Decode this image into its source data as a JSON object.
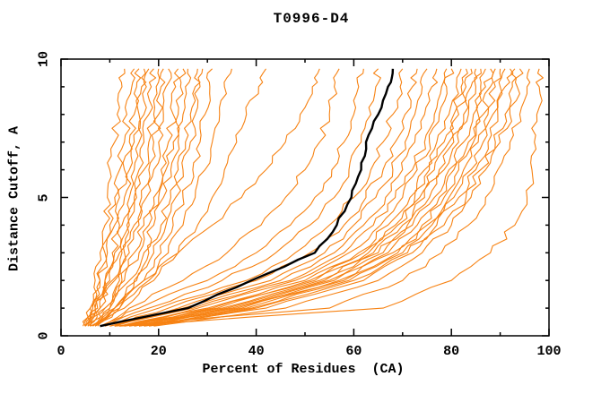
{
  "chart_data": {
    "type": "line",
    "title": "T0996-D4",
    "xlabel": "Percent of Residues  (CA)",
    "ylabel": "Distance Cutoff, A",
    "xlim": [
      0,
      100
    ],
    "ylim": [
      0,
      10
    ],
    "x_tick_labels": [
      "0",
      "20",
      "40",
      "60",
      "80",
      "100"
    ],
    "x_major_ticks": [
      0,
      20,
      40,
      60,
      80,
      100
    ],
    "x_minor_ticks": [
      10,
      30,
      50,
      70,
      90
    ],
    "y_tick_labels": [
      "0",
      "5",
      "10"
    ],
    "y_major_ticks": [
      0,
      5,
      10
    ],
    "y_minor_ticks": [
      1,
      2,
      3,
      4,
      6,
      7,
      8,
      9
    ],
    "grid": "off",
    "legend": "none",
    "colors": {
      "models": "#F78212",
      "reference": "#000000",
      "frame": "#000000"
    },
    "cutoffs": [
      0.35,
      1,
      2,
      3,
      4,
      5,
      6,
      7,
      8,
      9,
      9.65
    ],
    "reference_percents": [
      8,
      26,
      39,
      52,
      56.5,
      59.5,
      61.5,
      62.5,
      65,
      67,
      68
    ],
    "model_percents": [
      [
        5,
        6,
        7,
        8,
        9,
        9.5,
        10,
        11,
        11.5,
        12.5,
        13
      ],
      [
        5,
        6.5,
        8,
        9,
        10,
        11,
        12,
        13,
        13.5,
        14.5,
        15
      ],
      [
        4.5,
        6,
        8,
        9.5,
        11,
        12,
        13,
        14,
        15,
        15.5,
        16
      ],
      [
        5,
        7,
        9,
        10.5,
        12,
        13,
        14,
        15,
        16,
        16.5,
        17
      ],
      [
        5.5,
        7,
        9,
        11,
        12.5,
        14,
        15,
        16,
        17,
        17.5,
        18
      ],
      [
        5,
        7.5,
        10,
        12,
        13.5,
        15,
        16,
        17,
        18,
        18.5,
        19
      ],
      [
        6,
        8,
        10.5,
        12.5,
        14,
        15.5,
        17,
        18,
        19,
        19.5,
        20
      ],
      [
        5.5,
        8,
        11,
        13,
        15,
        16.5,
        18,
        19,
        20,
        20.5,
        21
      ],
      [
        6,
        9,
        12,
        14,
        16,
        17.5,
        19,
        20,
        21,
        21.5,
        22
      ],
      [
        6,
        9,
        12.5,
        15,
        17,
        19,
        20.5,
        22,
        23,
        23.5,
        24
      ],
      [
        6.5,
        10,
        13,
        16,
        18,
        20,
        21.5,
        23,
        24,
        24.5,
        25
      ],
      [
        6,
        10,
        14,
        17,
        19,
        21,
        22.5,
        24,
        25,
        25.5,
        26
      ],
      [
        7,
        11,
        15,
        18,
        20.5,
        22.5,
        24,
        25.5,
        26.5,
        27.5,
        28
      ],
      [
        6.5,
        11,
        15.5,
        19,
        21.5,
        23.5,
        25,
        26.5,
        27.5,
        28.5,
        29
      ],
      [
        7,
        12,
        17,
        20.5,
        23,
        25,
        27,
        28.5,
        29.5,
        30.5,
        31
      ],
      [
        7,
        12,
        18,
        22,
        25,
        27.5,
        29.5,
        31,
        32.5,
        33.5,
        35
      ],
      [
        7.5,
        13,
        19,
        24,
        28,
        31,
        33.5,
        36,
        38,
        40.5,
        42
      ],
      [
        7,
        11,
        17,
        24,
        31,
        37,
        42,
        46,
        49,
        51.5,
        53
      ],
      [
        8,
        14,
        25,
        34,
        41,
        46,
        50,
        53,
        55,
        56,
        57
      ],
      [
        8,
        16,
        30,
        40,
        47,
        52,
        55.5,
        58,
        60,
        61,
        62
      ],
      [
        9,
        18,
        33,
        44,
        51,
        56,
        59,
        61.5,
        63.5,
        64.5,
        65
      ],
      [
        9,
        20,
        38,
        48,
        55,
        60,
        63.5,
        66,
        68,
        69.5,
        70
      ],
      [
        10,
        22,
        40,
        51,
        58,
        62.5,
        66,
        68.5,
        70.5,
        72,
        73
      ],
      [
        10,
        24,
        43,
        54,
        60,
        64.5,
        68,
        70.5,
        72.5,
        74,
        75
      ],
      [
        11,
        25,
        45,
        56,
        62,
        66.5,
        70,
        72.5,
        74.5,
        76,
        77
      ],
      [
        11,
        27,
        47,
        58,
        64,
        68.5,
        72,
        74.5,
        76.5,
        78,
        79
      ],
      [
        12,
        28,
        48,
        59,
        65.5,
        70,
        73,
        75.5,
        77.5,
        79,
        80
      ],
      [
        12,
        30,
        50,
        61,
        67,
        71.5,
        74.5,
        77,
        79.5,
        81,
        82
      ],
      [
        13,
        31,
        51,
        62,
        68.5,
        72.5,
        75.5,
        78.5,
        80.5,
        82,
        83
      ],
      [
        13,
        32,
        52,
        63,
        69,
        73.5,
        76.5,
        79.5,
        81.5,
        83,
        84
      ],
      [
        14,
        33,
        53,
        64,
        70,
        74.5,
        77.5,
        80.5,
        82.5,
        84,
        85
      ],
      [
        14,
        34,
        54,
        65,
        71,
        75.5,
        78.5,
        81.5,
        83.5,
        85,
        86
      ],
      [
        15,
        35,
        55,
        66,
        72,
        76.5,
        79.5,
        82.5,
        84.5,
        86,
        87
      ],
      [
        15,
        36,
        56,
        67,
        73,
        77.5,
        80.5,
        83.5,
        85.5,
        87,
        88
      ],
      [
        16,
        37,
        57,
        68,
        74,
        78.5,
        81.5,
        84.5,
        86.5,
        88,
        89
      ],
      [
        16,
        38,
        58,
        69,
        75,
        79.5,
        82.5,
        85.5,
        87.5,
        89,
        90
      ],
      [
        17,
        39,
        59,
        70,
        76,
        80.5,
        84,
        86.5,
        88.5,
        90,
        91
      ],
      [
        17,
        40,
        60,
        71,
        77,
        81.5,
        85,
        87.5,
        89.5,
        91,
        92
      ],
      [
        18,
        42,
        62,
        72,
        78.5,
        83,
        86,
        89,
        91,
        92.5,
        93
      ],
      [
        19,
        46,
        65,
        74,
        80,
        84,
        87,
        90,
        92,
        93.5,
        94
      ],
      [
        11,
        55,
        70,
        78,
        83.5,
        87,
        89.5,
        92,
        94,
        95.5,
        96
      ],
      [
        12,
        66,
        80,
        88,
        93,
        95.5,
        96.5,
        97,
        97.5,
        98,
        98
      ]
    ]
  }
}
